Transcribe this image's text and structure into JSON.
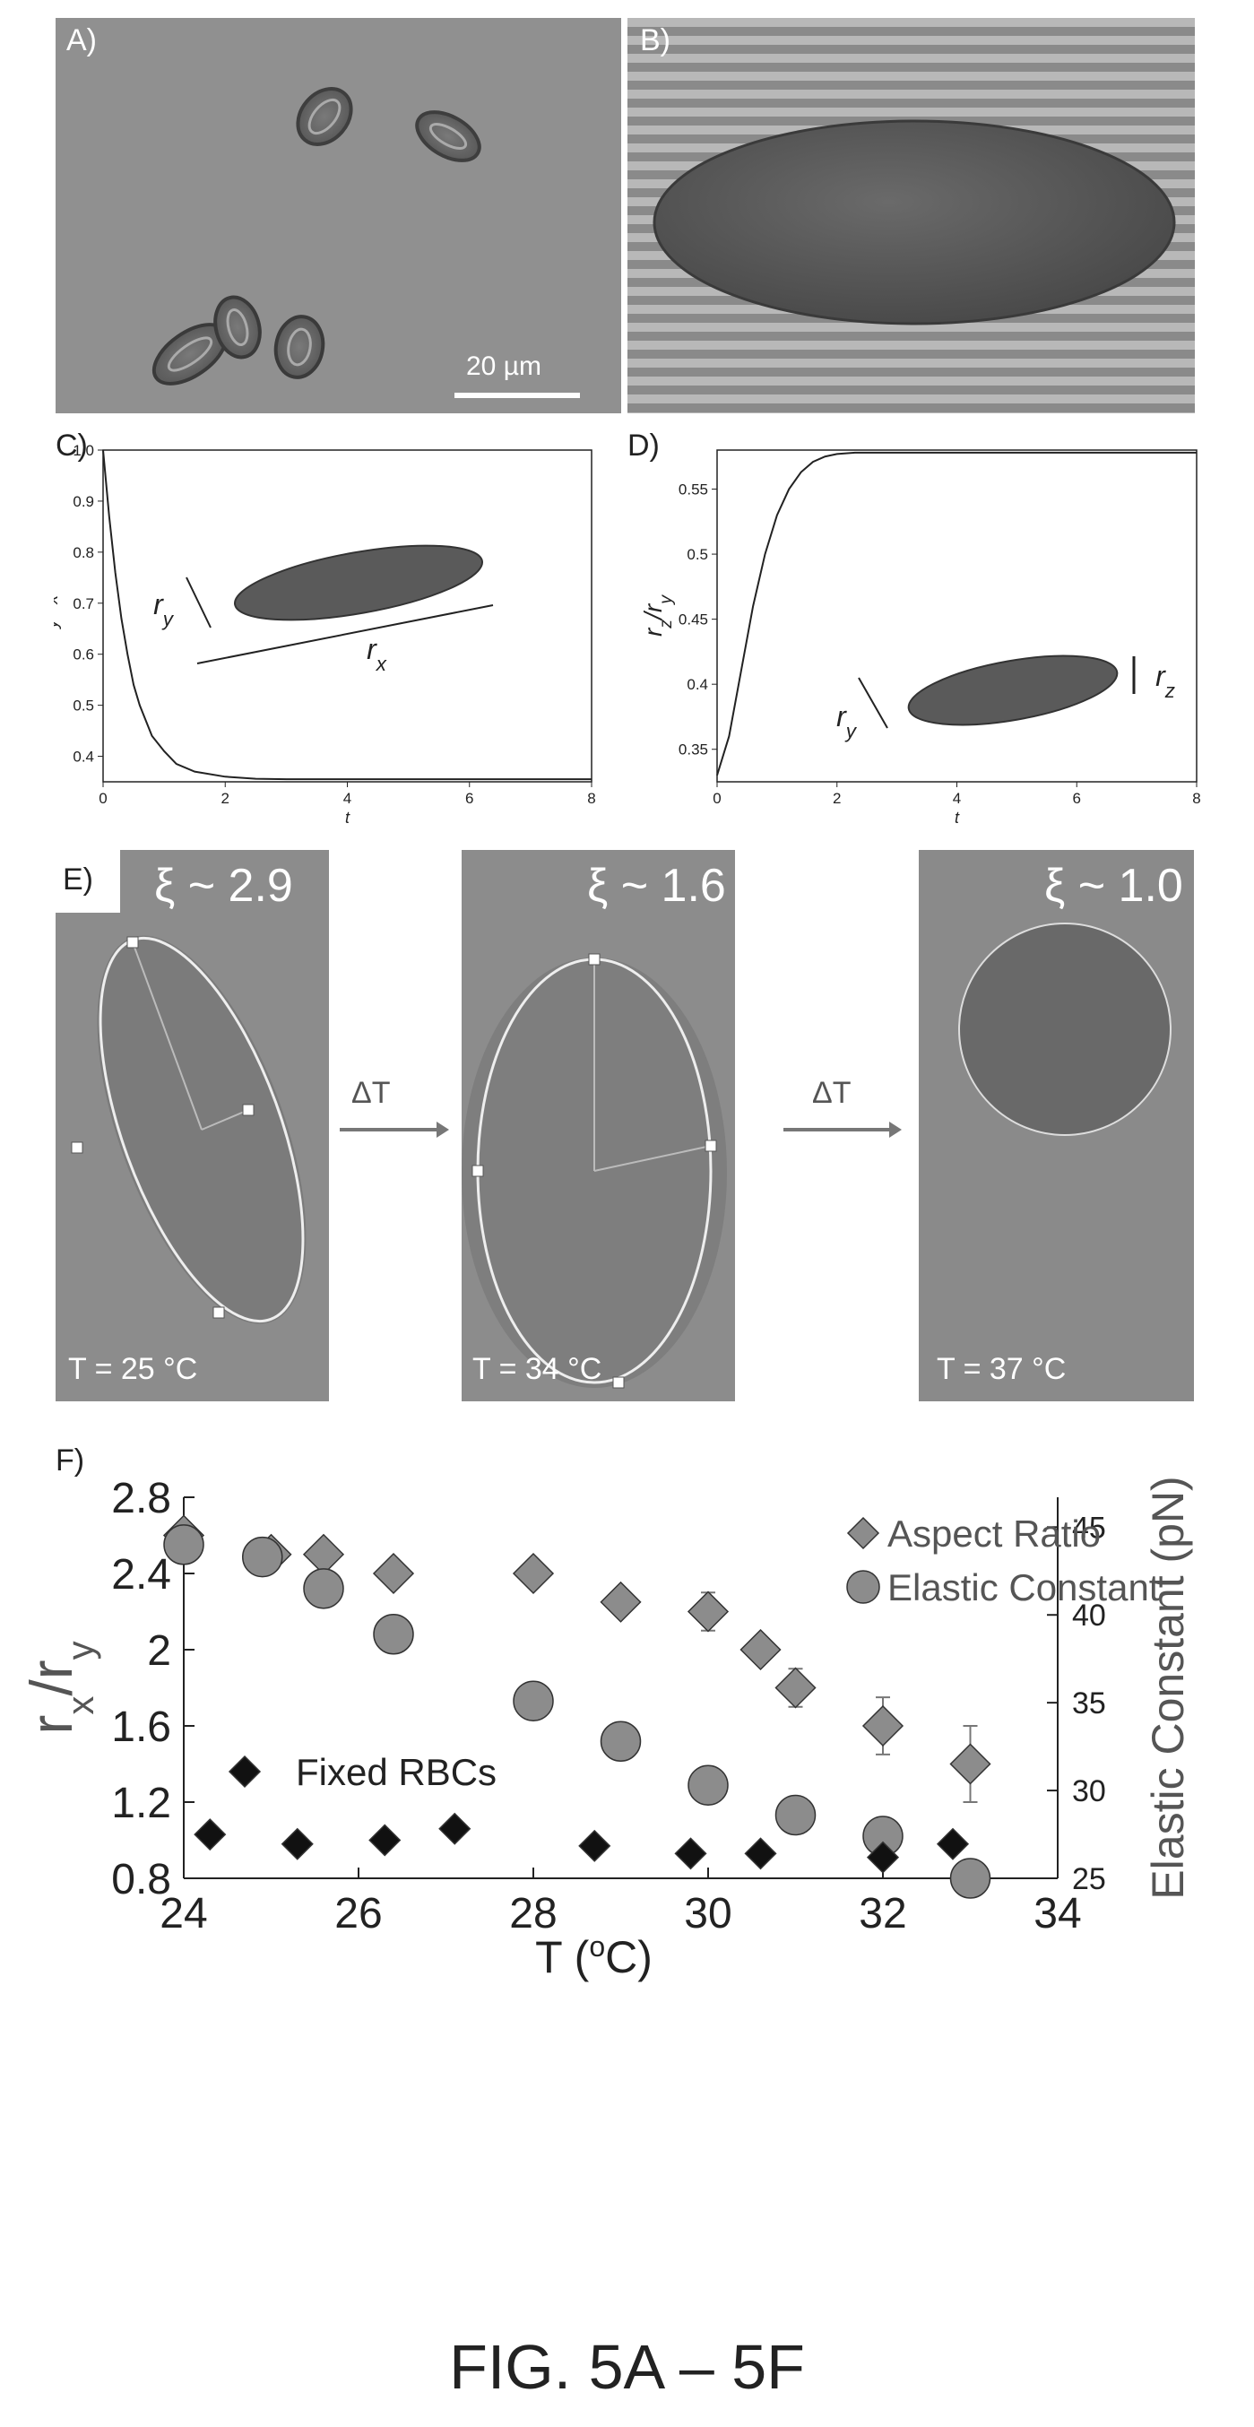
{
  "panelA": {
    "label": "A)",
    "scalebar": "20 µm"
  },
  "panelB": {
    "label": "B)"
  },
  "panelC": {
    "label": "C)",
    "ylabel": "r_y/r_x",
    "xlabel": "t",
    "inset_labels": [
      "r_y",
      "r_x"
    ]
  },
  "panelD": {
    "label": "D)",
    "ylabel": "r_z/r_y",
    "xlabel": "t",
    "inset_labels": [
      "r_y",
      "r_z"
    ]
  },
  "panelE": {
    "label": "E)",
    "arrow_label": "ΔT",
    "cells": [
      {
        "xi": "ξ ~ 2.9",
        "temp": "T = 25 °C"
      },
      {
        "xi": "ξ ~ 1.6",
        "temp": "T = 34 °C"
      },
      {
        "xi": "ξ ~ 1.0",
        "temp": "T = 37 °C"
      }
    ]
  },
  "panelF": {
    "label": "F)",
    "legend": [
      "Aspect Ratio",
      "Elastic Constant"
    ],
    "fixed_label": "Fixed RBCs"
  },
  "caption": "FIG. 5A – 5F",
  "chart_data": [
    {
      "type": "line",
      "panel": "C",
      "xlabel": "t",
      "ylabel": "r_y/r_x",
      "xlim": [
        0,
        8
      ],
      "ylim": [
        0.35,
        1.0
      ],
      "xticks": [
        0,
        2,
        4,
        6,
        8
      ],
      "yticks": [
        0.4,
        0.5,
        0.6,
        0.7,
        0.8,
        0.9,
        1.0
      ],
      "x": [
        0,
        0.1,
        0.2,
        0.3,
        0.4,
        0.5,
        0.6,
        0.8,
        1.0,
        1.2,
        1.5,
        2.0,
        2.5,
        3,
        4,
        5,
        6,
        7,
        8
      ],
      "y": [
        1.0,
        0.87,
        0.76,
        0.67,
        0.6,
        0.54,
        0.5,
        0.44,
        0.41,
        0.385,
        0.37,
        0.36,
        0.356,
        0.355,
        0.355,
        0.355,
        0.355,
        0.355,
        0.355
      ]
    },
    {
      "type": "line",
      "panel": "D",
      "xlabel": "t",
      "ylabel": "r_z/r_y",
      "xlim": [
        0,
        8
      ],
      "ylim": [
        0.325,
        0.58
      ],
      "xticks": [
        0,
        2,
        4,
        6,
        8
      ],
      "yticks": [
        0.35,
        0.4,
        0.45,
        0.5,
        0.55
      ],
      "x": [
        0,
        0.2,
        0.4,
        0.6,
        0.8,
        1.0,
        1.2,
        1.4,
        1.6,
        1.8,
        2.0,
        2.3,
        2.6,
        3,
        4,
        5,
        6,
        7,
        8
      ],
      "y": [
        0.33,
        0.36,
        0.41,
        0.46,
        0.5,
        0.53,
        0.55,
        0.563,
        0.571,
        0.575,
        0.577,
        0.578,
        0.578,
        0.578,
        0.578,
        0.578,
        0.578,
        0.578,
        0.578
      ]
    },
    {
      "type": "scatter",
      "panel": "F",
      "xlabel": "T (oC)",
      "ylabel": "rx/ry",
      "y2label": "Elastic Constant (pN)",
      "xlim": [
        24,
        34
      ],
      "ylim": [
        0.8,
        2.8
      ],
      "y2lim": [
        25,
        46.7
      ],
      "xticks": [
        24,
        26,
        28,
        30,
        32,
        34
      ],
      "yticks": [
        "0.8",
        "1.2",
        "1.6",
        "2",
        "2.4",
        "2.8"
      ],
      "y2ticks": [
        25,
        30,
        35,
        40,
        45
      ],
      "series": [
        {
          "name": "Aspect Ratio",
          "marker": "diamond",
          "color": "#8c8c8c",
          "axis": "left",
          "x": [
            24,
            25,
            25.6,
            26.4,
            28,
            29,
            30,
            30.6,
            31,
            32,
            33
          ],
          "y": [
            2.6,
            2.5,
            2.5,
            2.4,
            2.4,
            2.25,
            2.2,
            2.0,
            1.8,
            1.6,
            1.4
          ],
          "err": [
            0,
            0,
            0,
            0,
            0,
            0,
            0.1,
            0,
            0.1,
            0.15,
            0.2
          ]
        },
        {
          "name": "Elastic Constant",
          "marker": "circle",
          "color": "#8c8c8c",
          "axis": "right",
          "x": [
            24,
            24.9,
            25.6,
            26.4,
            28,
            29,
            30,
            31,
            32,
            33
          ],
          "y": [
            44,
            43.3,
            41.5,
            38.9,
            35.1,
            32.8,
            30.3,
            28.6,
            27.4,
            25
          ]
        },
        {
          "name": "Fixed RBCs",
          "marker": "diamond",
          "color": "#111111",
          "axis": "left",
          "x": [
            24.3,
            25.3,
            26.3,
            27.1,
            28.7,
            29.8,
            30.6,
            32,
            32.8
          ],
          "y": [
            1.03,
            0.98,
            1.0,
            1.06,
            0.97,
            0.93,
            0.93,
            0.91,
            0.98
          ]
        }
      ]
    }
  ]
}
